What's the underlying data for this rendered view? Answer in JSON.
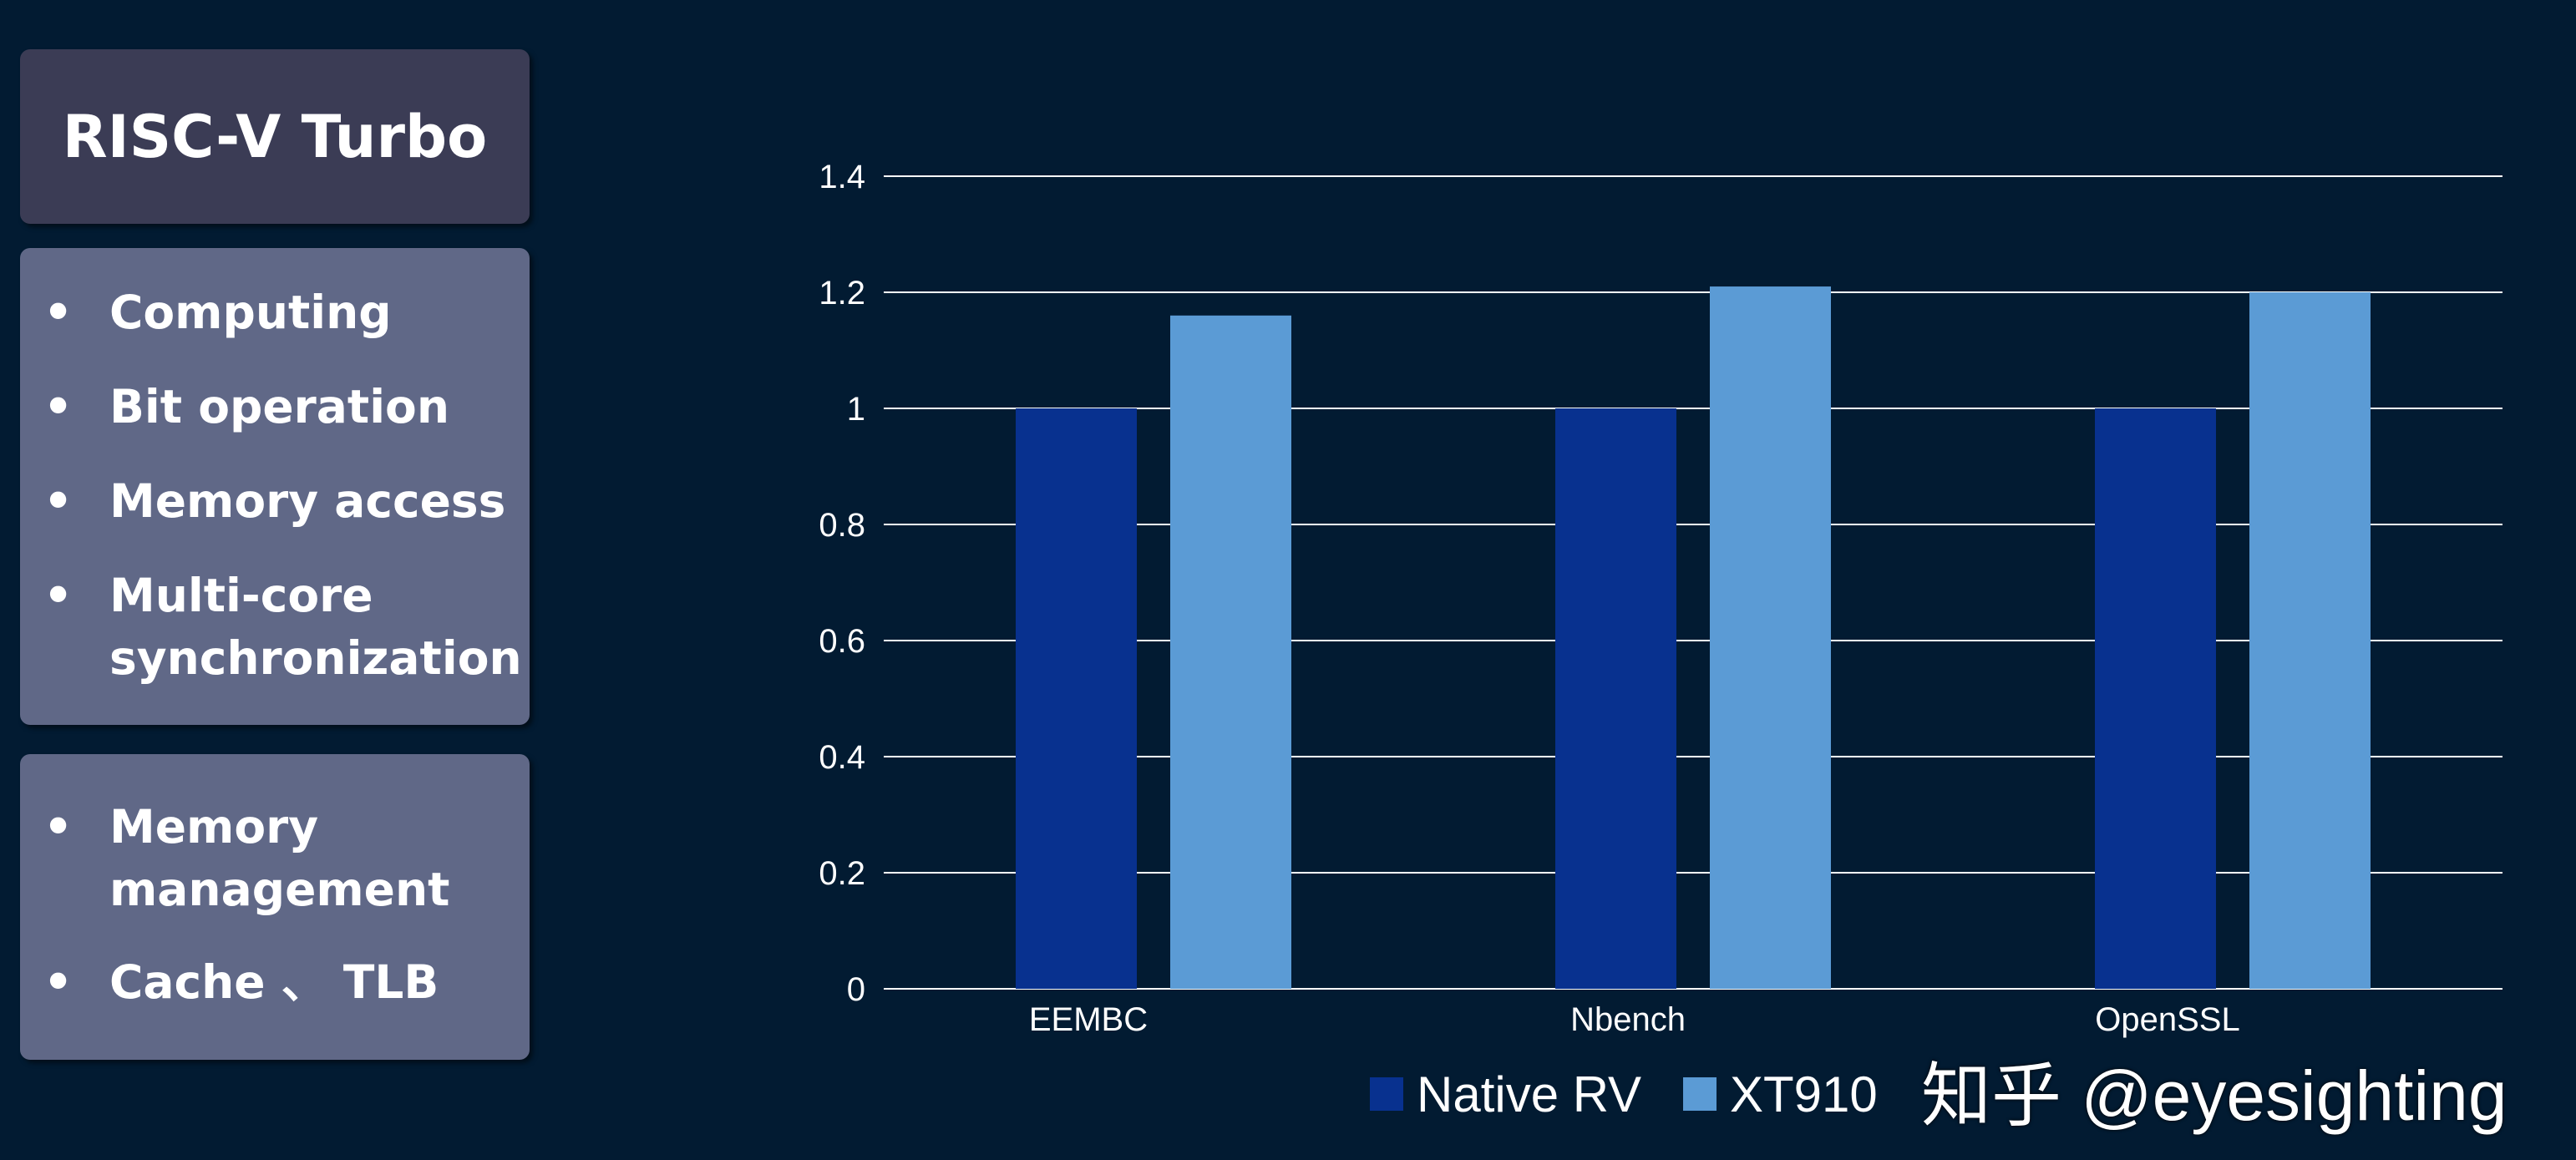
{
  "panel": {
    "title": "RISC-V Turbo",
    "group1": [
      "Computing",
      "Bit operation",
      "Memory access",
      "Multi-core synchronization"
    ],
    "group2": [
      "Memory management",
      "Cache 、 TLB"
    ]
  },
  "watermark": "知乎 @eyesighting",
  "chart_data": {
    "type": "bar",
    "title": "",
    "xlabel": "",
    "ylabel": "",
    "categories": [
      "EEMBC",
      "Nbench",
      "OpenSSL"
    ],
    "series": [
      {
        "name": "Native RV",
        "values": [
          1.0,
          1.0,
          1.0
        ],
        "color": "#08318f"
      },
      {
        "name": "XT910",
        "values": [
          1.16,
          1.21,
          1.2
        ],
        "color": "#5b9bd5"
      }
    ],
    "ylim": [
      0,
      1.4
    ],
    "yticks": [
      0,
      0.2,
      0.4,
      0.6,
      0.8,
      1,
      1.2,
      1.4
    ],
    "ytick_labels": [
      "0",
      "0.2",
      "0.4",
      "0.6",
      "0.8",
      "1",
      "1.2",
      "1.4"
    ],
    "grid": true,
    "legend": "bottom-center"
  }
}
